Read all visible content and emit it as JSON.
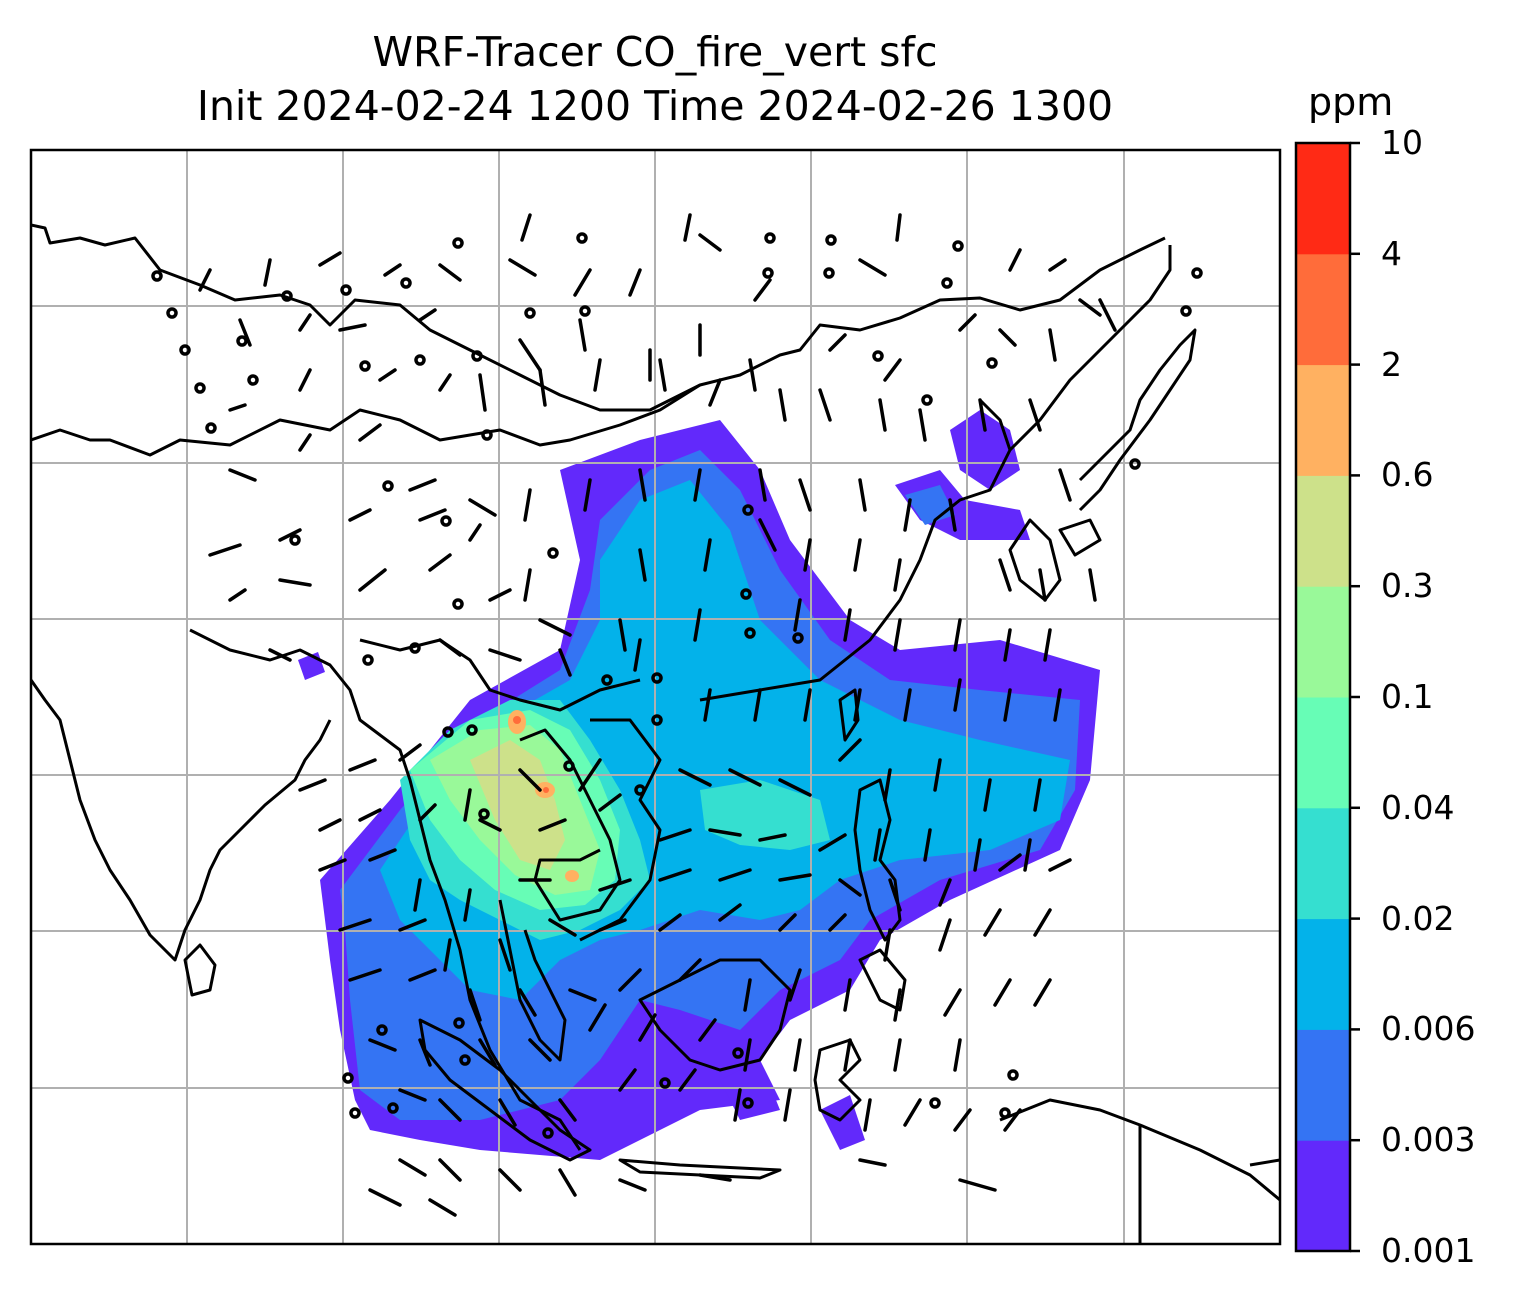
{
  "title_line1": "WRF-Tracer CO_fire_vert sfc",
  "title_line2": "Init 2024-02-24 1200 Time 2024-02-26 1300",
  "colorbar": {
    "unit": "ppm",
    "tick_labels": [
      "0.001",
      "0.003",
      "0.006",
      "0.02",
      "0.04",
      "0.1",
      "0.3",
      "0.6",
      "2",
      "4",
      "10"
    ],
    "colors": [
      "#6229fb",
      "#3474f3",
      "#03b2ea",
      "#35dfd0",
      "#67fdb6",
      "#99f999",
      "#cde18a",
      "#ffb161",
      "#ff6c3a",
      "#ff2a15"
    ]
  },
  "map": {
    "content": "Surface CO fire tracer concentration over Southeast Asia with wind barbs",
    "grid": true,
    "coastline_color": "#000000"
  }
}
